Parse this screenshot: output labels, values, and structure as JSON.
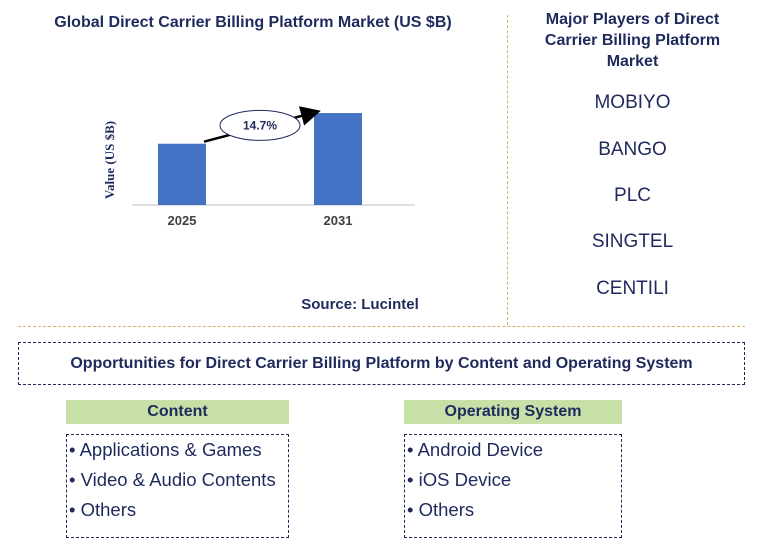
{
  "chart_data": {
    "type": "bar",
    "title": "Global Direct Carrier Billing Platform Market (US $B)",
    "categories": [
      "2025",
      "2031"
    ],
    "values": [
      1.0,
      1.5
    ],
    "ylabel": "Value (US $B)",
    "ylim": [
      0,
      1.55
    ],
    "annotation": "14.7%",
    "colors": {
      "bar": "#4472c4",
      "text": "#1f2a5c",
      "axis": "#c0c0c0"
    }
  },
  "source": "Source: Lucintel",
  "players": {
    "title": "Major Players of Direct Carrier Billing Platform Market",
    "items": [
      "MOBIYO",
      "BANGO",
      "PLC",
      "SINGTEL",
      "CENTILI"
    ]
  },
  "opportunities": {
    "title": "Opportunities for Direct Carrier Billing Platform by  Content and Operating System",
    "content": {
      "header": "Content",
      "items": [
        "• Applications & Games",
        "• Video & Audio Contents",
        "• Others"
      ]
    },
    "os": {
      "header": "Operating System",
      "items": [
        "• Android Device",
        "• iOS Device",
        "• Others"
      ]
    }
  }
}
